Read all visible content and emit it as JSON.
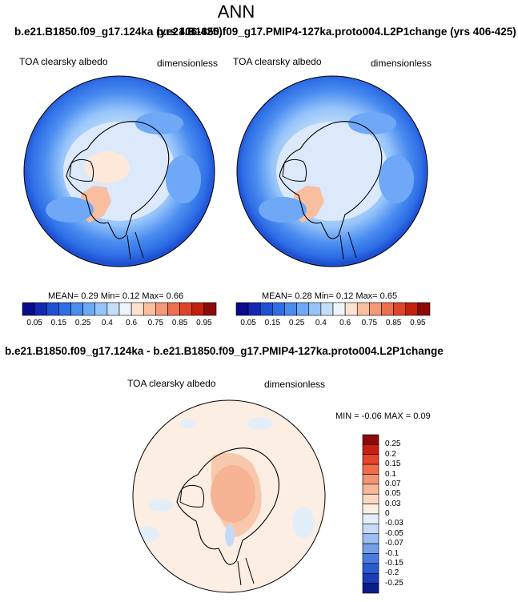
{
  "page_title": "ANN",
  "top_header": {
    "left_case": "b.e21.B1850.f09_g17.124ka (yrs 406-425)",
    "right_case": "b.e21.B1850.f09_g17.PMIP4-127ka.proto004.L2P1change (yrs 406-425)"
  },
  "panels": [
    {
      "variable": "TOA clearsky albedo",
      "units": "dimensionless",
      "stats": "MEAN=  0.29  Min=  0.12  Max=  0.66"
    },
    {
      "variable": "TOA clearsky albedo",
      "units": "dimensionless",
      "stats": "MEAN=  0.28  Min=  0.12  Max=  0.65"
    }
  ],
  "horizontal_colorbar": {
    "colors": [
      "#0a0a8c",
      "#1428b4",
      "#1e50d2",
      "#2e6ee6",
      "#4a8cf0",
      "#6ea8f6",
      "#96c4fa",
      "#c4def8",
      "#eef4fa",
      "#fde2cf",
      "#f9bea0",
      "#f59878",
      "#ee6e4e",
      "#e04428",
      "#c4200e",
      "#8c0a0a"
    ],
    "ticks": [
      "0.05",
      "0.15",
      "0.25",
      "0.4",
      "0.6",
      "0.75",
      "0.85",
      "0.95"
    ]
  },
  "diff_panel": {
    "title": "b.e21.B1850.f09_g17.124ka - b.e21.B1850.f09_g17.PMIP4-127ka.proto004.L2P1change",
    "variable": "TOA clearsky albedo",
    "units": "dimensionless",
    "stats": "MIN =  -0.06 MAX =   0.09"
  },
  "vertical_colorbar": {
    "colors": [
      "#8c0a0a",
      "#c8200e",
      "#e4442a",
      "#f06c4c",
      "#f49474",
      "#f8b898",
      "#fcd8c2",
      "#fdeee4",
      "#e4eef8",
      "#c4daf6",
      "#9cbef2",
      "#74a0ea",
      "#4a7ce0",
      "#2a5cd2",
      "#1a3cb8",
      "#0a1c8c"
    ],
    "ticks": [
      "0.25",
      "0.2",
      "0.15",
      "0.1",
      "0.07",
      "0.05",
      "0.03",
      "0",
      "-0.03",
      "-0.05",
      "-0.07",
      "-0.1",
      "-0.15",
      "-0.2",
      "-0.25"
    ]
  }
}
